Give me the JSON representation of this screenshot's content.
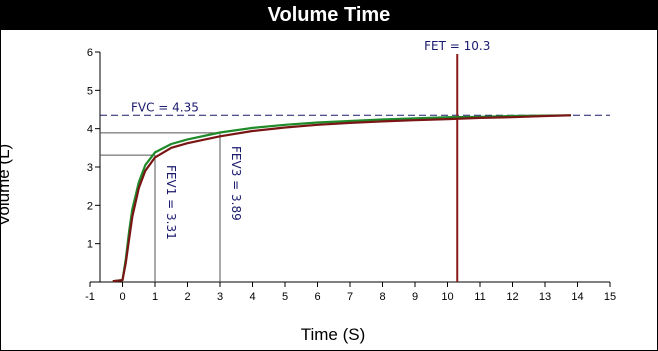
{
  "chart_data": {
    "type": "line",
    "title": "Volume Time",
    "xlabel": "Time (S)",
    "ylabel": "Volume (L)",
    "xlim": [
      -1,
      15
    ],
    "ylim": [
      0,
      6
    ],
    "x_ticks": [
      -1,
      0,
      1,
      2,
      3,
      4,
      5,
      6,
      7,
      8,
      9,
      10,
      11,
      12,
      13,
      14,
      15
    ],
    "y_ticks": [
      1,
      2,
      3,
      4,
      5,
      6
    ],
    "grid": false,
    "series": [
      {
        "color": "#1f8a2a",
        "x": [
          -0.3,
          0,
          0.1,
          0.2,
          0.3,
          0.5,
          0.7,
          1,
          1.5,
          2,
          3,
          4,
          5,
          6,
          7,
          8,
          9,
          10,
          11,
          12,
          13,
          13.8
        ],
        "y": [
          0.02,
          0.05,
          0.6,
          1.3,
          1.9,
          2.6,
          3.05,
          3.38,
          3.6,
          3.72,
          3.9,
          4.02,
          4.1,
          4.16,
          4.2,
          4.24,
          4.27,
          4.3,
          4.31,
          4.33,
          4.34,
          4.35
        ]
      },
      {
        "color": "#7a1515",
        "x": [
          -0.3,
          0,
          0.1,
          0.2,
          0.3,
          0.5,
          0.7,
          1,
          1.5,
          2,
          3,
          4,
          5,
          6,
          7,
          8,
          9,
          10,
          11,
          12,
          13,
          13.8
        ],
        "y": [
          0.02,
          0.05,
          0.5,
          1.1,
          1.7,
          2.45,
          2.9,
          3.25,
          3.5,
          3.62,
          3.8,
          3.94,
          4.03,
          4.1,
          4.15,
          4.19,
          4.22,
          4.25,
          4.28,
          4.3,
          4.33,
          4.35
        ]
      }
    ],
    "reference_lines": {
      "fvc": {
        "label": "FVC = 4.35",
        "value": 4.35
      },
      "fev1": {
        "label": "FEV1 = 3.31",
        "time": 1,
        "value": 3.31
      },
      "fev3": {
        "label": "FEV3 = 3.89",
        "time": 3,
        "value": 3.89
      },
      "fet": {
        "label": "FET = 10.3",
        "time": 10.3,
        "color": "#8b1a1a"
      }
    }
  }
}
